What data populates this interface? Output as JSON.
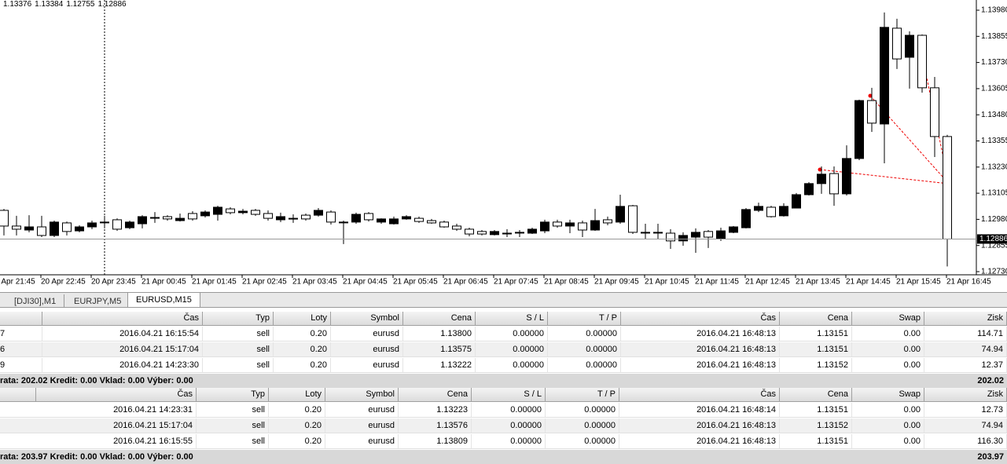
{
  "chart": {
    "type": "candlestick",
    "ylim": [
      1.1273,
      1.1398
    ],
    "yticks": [
      {
        "value": 1.1398,
        "label": "1.13980"
      },
      {
        "value": 1.13855,
        "label": "1.13855"
      },
      {
        "value": 1.1373,
        "label": "1.13730"
      },
      {
        "value": 1.13605,
        "label": "1.13605"
      },
      {
        "value": 1.1348,
        "label": "1.13480"
      },
      {
        "value": 1.13355,
        "label": "1.13355"
      },
      {
        "value": 1.1323,
        "label": "1.13230"
      },
      {
        "value": 1.13105,
        "label": "1.13105"
      },
      {
        "value": 1.1298,
        "label": "1.12980"
      },
      {
        "value": 1.12855,
        "label": "1.12855"
      },
      {
        "value": 1.1273,
        "label": "1.12730"
      }
    ],
    "x_labels": [
      "20 Apr 21:45",
      "20 Apr 22:45",
      "20 Apr 23:45",
      "21 Apr 00:45",
      "21 Apr 01:45",
      "21 Apr 02:45",
      "21 Apr 03:45",
      "21 Apr 04:45",
      "21 Apr 05:45",
      "21 Apr 06:45",
      "21 Apr 07:45",
      "21 Apr 08:45",
      "21 Apr 09:45",
      "21 Apr 10:45",
      "21 Apr 11:45",
      "21 Apr 12:45",
      "21 Apr 13:45",
      "21 Apr 14:45",
      "21 Apr 15:45",
      "21 Apr 16:45"
    ],
    "candles": [
      [
        1.13023,
        1.1303,
        1.12903,
        1.12948
      ],
      [
        1.12948,
        1.12997,
        1.12903,
        1.12933
      ],
      [
        1.12929,
        1.13,
        1.12918,
        1.12944
      ],
      [
        1.12944,
        1.12997,
        1.12895,
        1.12903
      ],
      [
        1.12903,
        1.12974,
        1.12895,
        1.12967
      ],
      [
        1.12963,
        1.1297,
        1.12903,
        1.12922
      ],
      [
        1.12925,
        1.12952,
        1.12918,
        1.12944
      ],
      [
        1.12944,
        1.12974,
        1.12933,
        1.12963
      ],
      [
        1.12967,
        1.12997,
        1.12937,
        1.12967
      ],
      [
        1.12978,
        1.12985,
        1.12925,
        1.12933
      ],
      [
        1.1294,
        1.12974,
        1.12933,
        1.12967
      ],
      [
        1.12959,
        1.13,
        1.12937,
        1.12993
      ],
      [
        1.12989,
        1.13015,
        1.12963,
        1.12989
      ],
      [
        1.12993,
        1.13,
        1.12974,
        1.12982
      ],
      [
        1.12974,
        1.13008,
        1.1297,
        1.12985
      ],
      [
        1.13008,
        1.13019,
        1.12974,
        1.12982
      ],
      [
        1.12997,
        1.13023,
        1.12989,
        1.13015
      ],
      [
        1.13004,
        1.13045,
        1.12974,
        1.13038
      ],
      [
        1.1303,
        1.13038,
        1.13004,
        1.13012
      ],
      [
        1.13012,
        1.1303,
        1.13004,
        1.13019
      ],
      [
        1.13023,
        1.1303,
        1.12997,
        1.13004
      ],
      [
        1.13008,
        1.13023,
        1.12974,
        1.12985
      ],
      [
        1.12978,
        1.13012,
        1.12967,
        1.12993
      ],
      [
        1.12985,
        1.13004,
        1.12963,
        1.12985
      ],
      [
        1.13,
        1.13008,
        1.12974,
        1.12982
      ],
      [
        1.13,
        1.13034,
        1.12993,
        1.13023
      ],
      [
        1.13015,
        1.13023,
        1.12955,
        1.12967
      ],
      [
        1.12967,
        1.12974,
        1.12862,
        1.12967
      ],
      [
        1.12967,
        1.13012,
        1.12959,
        1.13004
      ],
      [
        1.13008,
        1.13015,
        1.1297,
        1.12978
      ],
      [
        1.12967,
        1.12985,
        1.12959,
        1.12982
      ],
      [
        1.12959,
        1.12993,
        1.12955,
        1.12982
      ],
      [
        1.12982,
        1.13,
        1.12978,
        1.12993
      ],
      [
        1.12985,
        1.12993,
        1.12963,
        1.1297
      ],
      [
        1.12974,
        1.12982,
        1.12959,
        1.12963
      ],
      [
        1.12967,
        1.12974,
        1.1294,
        1.12944
      ],
      [
        1.12948,
        1.12959,
        1.12925,
        1.12933
      ],
      [
        1.12933,
        1.1294,
        1.12899,
        1.1291
      ],
      [
        1.12922,
        1.12929,
        1.12903,
        1.1291
      ],
      [
        1.12907,
        1.12929,
        1.12903,
        1.12922
      ],
      [
        1.12914,
        1.12933,
        1.12895,
        1.12914
      ],
      [
        1.12918,
        1.12929,
        1.12895,
        1.12918
      ],
      [
        1.12914,
        1.1294,
        1.1291,
        1.12933
      ],
      [
        1.12925,
        1.12978,
        1.12914,
        1.12967
      ],
      [
        1.12967,
        1.12978,
        1.1294,
        1.12948
      ],
      [
        1.12948,
        1.12978,
        1.12914,
        1.12963
      ],
      [
        1.12963,
        1.12974,
        1.12895,
        1.12929
      ],
      [
        1.12929,
        1.1303,
        1.12925,
        1.12974
      ],
      [
        1.12978,
        1.12993,
        1.12952,
        1.12963
      ],
      [
        1.12967,
        1.13098,
        1.12959,
        1.13042
      ],
      [
        1.13045,
        1.13049,
        1.1291,
        1.12918
      ],
      [
        1.12918,
        1.12959,
        1.12884,
        1.12918
      ],
      [
        1.12918,
        1.12959,
        1.12884,
        1.12918
      ],
      [
        1.12914,
        1.12933,
        1.12839,
        1.12877
      ],
      [
        1.12877,
        1.12918,
        1.12854,
        1.12903
      ],
      [
        1.12895,
        1.12937,
        1.1282,
        1.12918
      ],
      [
        1.12922,
        1.12929,
        1.12843,
        1.12895
      ],
      [
        1.12888,
        1.1294,
        1.12877,
        1.12925
      ],
      [
        1.12918,
        1.12948,
        1.12914,
        1.12944
      ],
      [
        1.1294,
        1.13034,
        1.12937,
        1.13027
      ],
      [
        1.13023,
        1.1306,
        1.13015,
        1.13042
      ],
      [
        1.13038,
        1.13045,
        1.12989,
        1.12993
      ],
      [
        1.12997,
        1.13057,
        1.12993,
        1.13042
      ],
      [
        1.13034,
        1.13106,
        1.13034,
        1.13098
      ],
      [
        1.13098,
        1.13158,
        1.13094,
        1.13151
      ],
      [
        1.13151,
        1.13233,
        1.13102,
        1.13196
      ],
      [
        1.13199,
        1.13233,
        1.13045,
        1.13102
      ],
      [
        1.13102,
        1.13334,
        1.13094,
        1.13271
      ],
      [
        1.13271,
        1.13552,
        1.13263,
        1.13548
      ],
      [
        1.13548,
        1.13609,
        1.13398,
        1.1344
      ],
      [
        1.13436,
        1.13969,
        1.13248,
        1.13898
      ],
      [
        1.13894,
        1.13939,
        1.13699,
        1.13747
      ],
      [
        1.13755,
        1.13879,
        1.13605,
        1.1386
      ],
      [
        1.1386,
        1.13864,
        1.13586,
        1.13609
      ],
      [
        1.13609,
        1.13661,
        1.13278,
        1.13376
      ],
      [
        1.13376,
        1.13384,
        1.12755,
        1.12886
      ]
    ]
  },
  "tabs": [
    "[DJI30],M1",
    "EURJPY,M5",
    "EURUSD,M15"
  ],
  "orders": {
    "columns": [
      "Čas",
      "Typ",
      "Loty",
      "Symbol",
      "Cena",
      "S / L",
      "T / P",
      "Čas",
      "Cena",
      "Swap",
      "Zisk"
    ],
    "rows": [
      [
        "7",
        "2016.04.21 16:15:54",
        "sell",
        "0.20",
        "eurusd",
        "1.13800",
        "0.00000",
        "0.00000",
        "2016.04.21 16:48:13",
        "1.13151",
        "0.00",
        "114.71"
      ],
      [
        "6",
        "2016.04.21 15:17:04",
        "sell",
        "0.20",
        "eurusd",
        "1.13575",
        "0.00000",
        "0.00000",
        "2016.04.21 16:48:13",
        "1.13151",
        "0.00",
        "74.94"
      ],
      [
        "9",
        "2016.04.21 14:23:30",
        "sell",
        "0.20",
        "eurusd",
        "1.13222",
        "0.00000",
        "0.00000",
        "2016.04.21 16:48:13",
        "1.13152",
        "0.00",
        "12.37"
      ]
    ],
    "summary": "rata: 202.02  Kredit: 0.00  Vklad: 0.00  Výber: 0.00",
    "total": "202.02"
  },
  "history": {
    "columns": [
      "Čas",
      "Typ",
      "Loty",
      "Symbol",
      "Cena",
      "S / L",
      "T / P",
      "Čas",
      "Cena",
      "Swap",
      "Zisk"
    ],
    "rows": [
      [
        "2016.04.21 14:23:31",
        "sell",
        "0.20",
        "eurusd",
        "1.13223",
        "0.00000",
        "0.00000",
        "2016.04.21 16:48:14",
        "1.13151",
        "0.00",
        "12.73"
      ],
      [
        "2016.04.21 15:17:04",
        "sell",
        "0.20",
        "eurusd",
        "1.13576",
        "0.00000",
        "0.00000",
        "2016.04.21 16:48:13",
        "1.13152",
        "0.00",
        "74.94"
      ],
      [
        "2016.04.21 16:15:55",
        "sell",
        "0.20",
        "eurusd",
        "1.13809",
        "0.00000",
        "0.00000",
        "2016.04.21 16:48:13",
        "1.13151",
        "0.00",
        "116.30"
      ]
    ],
    "summary": "rata: 203.97  Kredit: 0.00  Vklad: 0.00  Výber: 0.00",
    "total": "203.97"
  }
}
